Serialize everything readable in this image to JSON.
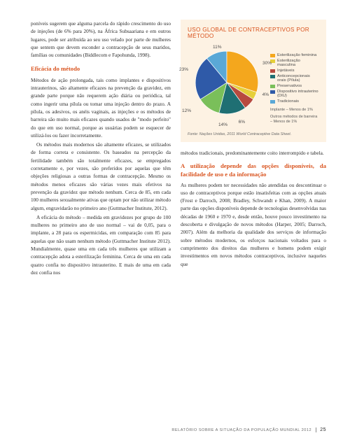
{
  "left": {
    "p1": "poníveis sugerem que alguma parcela do rápido crescimento do uso de injeções (de 6% para 20%), na África Subsaariana e em outros lugares, pode ser atribuída ao seu uso velado por parte de mulheres que sentem que devem esconder a contracepção de seus maridos, famílias ou comunidades (Biddlecom e Fapohunda, 1998).",
    "h1": "Eficácia do método",
    "p2": "Métodos de ação prolongada, tais como implantes e dispositivos intrauterinos, são altamente eficazes na prevenção da gravidez, em grande parte porque não requerem ação diária ou periódica, tal como ingerir uma pílula ou tomar uma injeção dentro do prazo. A pílula, os adesivos, os anéis vaginais, as injeções e os métodos de barreira são muito mais eficazes quando usados de \"modo perfeito\" do que em uso normal, porque as usuárias podem se esquecer de utilizá-los ou fazer incorretamente.",
    "p3": "Os métodos mais modernos são altamente eficazes, se utilizados de forma correta e consistente. Os baseados na percepção da fertilidade também são totalmente eficazes, se empregados corretamente e, por vezes, são preferidos por aquelas que têm objeções religiosas a outras formas de contracepção. Mesmo os métodos menos eficazes são várias vezes mais efetivos na prevenção da gravidez que método nenhum. Cerca de 85, em cada 100 mulheres sexualmente ativas que optam por não utilizar método algum, engravidarão no primeiro ano (Guttmacher Institute, 2012).",
    "p4": "A eficácia do método – medida em gravidezes por grupo de 100 mulheres no primeiro ano de uso normal – vai de 0,05, para o implante, a 28 para os espermicidas, em comparação com 85 para aquelas que não usam nenhum método (Guttmacher Institute 2012). Mundialmente, quase uma em cada três mulheres que utilizam a contracepção adota a esterilização feminina. Cerca de uma em cada quatro confia no dispositivo intrauterino. E mais de uma em cada dez confia nos"
  },
  "chart": {
    "title": "USO GLOBAL DE CONTRACEPTIVOS POR MÉTODO",
    "type": "pie",
    "background_color": "#fdf2e3",
    "slices": [
      {
        "label": "Esterilização feminina",
        "pct": 30,
        "color": "#f4a71d"
      },
      {
        "label": "Esterilização masculina",
        "pct": 4,
        "color": "#e6cf3a"
      },
      {
        "label": "Injetáveis",
        "pct": 6,
        "color": "#b84a3f"
      },
      {
        "label": "Anticoncepcionais orais (Pílula)",
        "pct": 14,
        "color": "#1f6f73"
      },
      {
        "label": "Preservativos",
        "pct": 12,
        "color": "#7abf5a"
      },
      {
        "label": "Dispositivo intrauterino (DIU)",
        "pct": 23,
        "color": "#2f5aa8"
      },
      {
        "label": "Tradicionais",
        "pct": 11,
        "color": "#5aa8d6"
      }
    ],
    "pct_labels": [
      "30%",
      "4%",
      "6%",
      "14%",
      "12%",
      "23%",
      "11%"
    ],
    "extra1": "Implante – Menos de 1%",
    "extra2": "Outros métodos de barreira – Menos de 1%",
    "source": "Fonte: Nações Unidas, 2011 World Contraceptive Data Sheet."
  },
  "right": {
    "p1": "métodos tradicionais, predominantemente coito interrompido e tabela.",
    "h1": "A utilização depende das opções disponíveis, da facilidade de uso e da informação",
    "p2": "As mulheres podem ter necessidades não atendidas ou descontinuar o uso de contraceptivos porque estão insatisfeitas com as opções atuais (Frost e Darroch, 2008; Bradley, Schwandt e Khan, 2009). A maior parte das opções disponíveis depende de tecnologias desenvolvidas nas décadas de 1960 e 1970 e, desde então, houve pouco investimento na descoberta e divulgação de novos métodos (Harper, 2005; Darroch, 2007). Além da melhoria da qualidade dos serviços de informação sobre métodos modernos, os esforços nacionais voltados para o cumprimento dos direitos das mulheres e homens podem exigir investimentos em novos métodos contraceptivos, inclusive naqueles que"
  },
  "footer": {
    "text": "RELATÓRIO SOBRE A SITUAÇÃO DA POPULAÇÃO MUNDIAL 2012",
    "page": "25"
  }
}
